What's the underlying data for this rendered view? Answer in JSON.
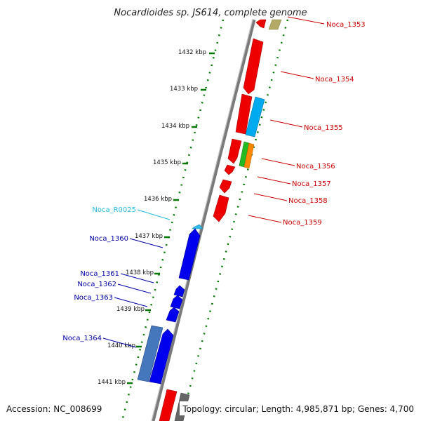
{
  "header": {
    "title": "Nocardioides sp. JS614, complete genome"
  },
  "footer": {
    "accession": "Accession: NC_008699",
    "info": "Topology: circular; Length: 4,985,871 bp; Genes: 4,700"
  },
  "ruler_ticks": [
    {
      "label": "1432 kbp"
    },
    {
      "label": "1433 kbp"
    },
    {
      "label": "1434 kbp"
    },
    {
      "label": "1435 kbp"
    },
    {
      "label": "1436 kbp"
    },
    {
      "label": "1437 kbp"
    },
    {
      "label": "1438 kbp"
    },
    {
      "label": "1439 kbp"
    },
    {
      "label": "1440 kbp"
    },
    {
      "label": "1441 kbp"
    }
  ],
  "gene_labels": [
    {
      "name": "Noca_1353",
      "strand": "forward",
      "color": "#cc0000"
    },
    {
      "name": "Noca_1354",
      "strand": "forward",
      "color": "#cc0000"
    },
    {
      "name": "Noca_1355",
      "strand": "forward",
      "color": "#cc0000"
    },
    {
      "name": "Noca_1356",
      "strand": "forward",
      "color": "#cc0000"
    },
    {
      "name": "Noca_1357",
      "strand": "forward",
      "color": "#cc0000"
    },
    {
      "name": "Noca_1358",
      "strand": "forward",
      "color": "#cc0000"
    },
    {
      "name": "Noca_1359",
      "strand": "forward",
      "color": "#cc0000"
    },
    {
      "name": "Noca_R0025",
      "strand": "reverse",
      "color": "#22bbdd"
    },
    {
      "name": "Noca_1360",
      "strand": "reverse",
      "color": "#0000aa"
    },
    {
      "name": "Noca_1361",
      "strand": "reverse",
      "color": "#0000aa"
    },
    {
      "name": "Noca_1362",
      "strand": "reverse",
      "color": "#0000aa"
    },
    {
      "name": "Noca_1363",
      "strand": "reverse",
      "color": "#0000aa"
    },
    {
      "name": "Noca_1364",
      "strand": "reverse",
      "color": "#0000aa"
    }
  ],
  "colors": {
    "forward_gene": "#ee0000",
    "reverse_gene": "#0000ee",
    "ruler_dots": "#007700",
    "axis_line": "#888888"
  }
}
